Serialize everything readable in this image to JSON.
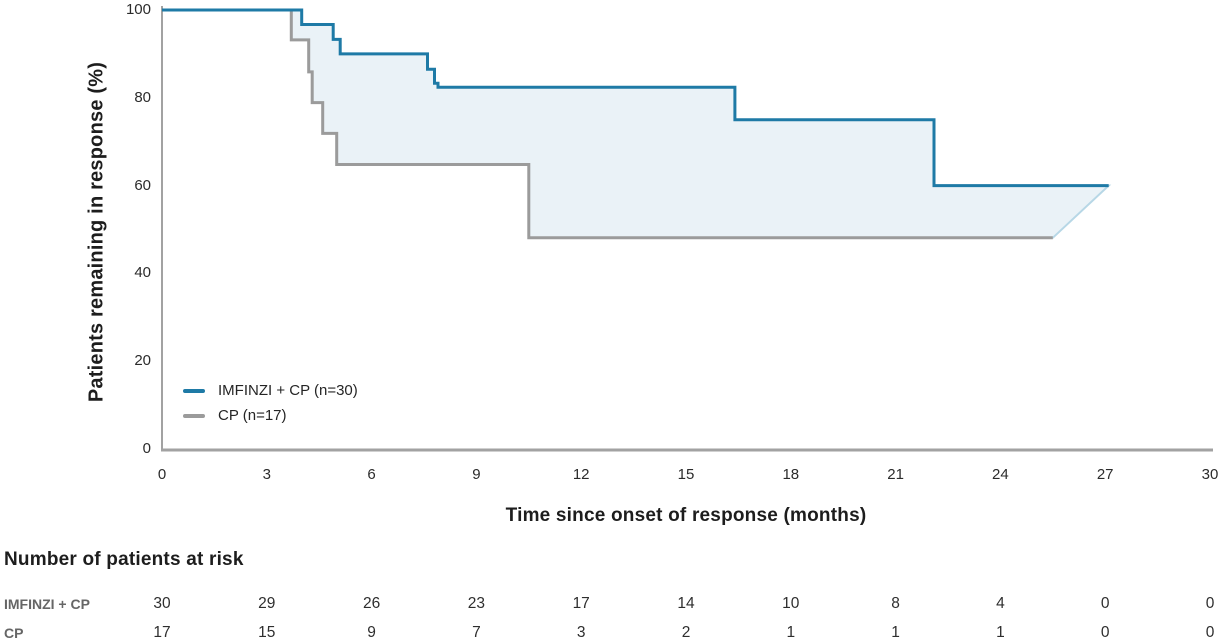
{
  "chart_data": {
    "type": "line",
    "subtype": "kaplan-meier-step",
    "title": "",
    "xlabel": "Time since onset of response (months)",
    "ylabel": "Patients remaining in response (%)",
    "xlim": [
      0,
      30
    ],
    "ylim": [
      0,
      100
    ],
    "xticks": [
      0,
      3,
      6,
      9,
      12,
      15,
      18,
      21,
      24,
      27,
      30
    ],
    "yticks": [
      0,
      20,
      40,
      60,
      80,
      100
    ],
    "grid": "off",
    "axis_color": "#a2a2a2",
    "band": {
      "fill": "#eaf2f7",
      "edge": "#b7d7e6"
    },
    "legend_position": "inside-lower-left",
    "legend": [
      {
        "label": "IMFINZI + CP (n=30)",
        "color": "#1e7aa6"
      },
      {
        "label": "CP (n=17)",
        "color": "#9b9b9b"
      }
    ],
    "series": [
      {
        "id": "imfinzi-cp",
        "name": "IMFINZI + CP (n=30)",
        "color": "#1e7aa6",
        "points": [
          [
            0,
            100
          ],
          [
            4.0,
            100
          ],
          [
            4.0,
            96.7
          ],
          [
            4.9,
            96.7
          ],
          [
            4.9,
            93.3
          ],
          [
            5.1,
            93.3
          ],
          [
            5.1,
            90
          ],
          [
            7.6,
            90
          ],
          [
            7.6,
            86.5
          ],
          [
            7.8,
            86.5
          ],
          [
            7.8,
            83.3
          ],
          [
            7.9,
            83.3
          ],
          [
            7.9,
            82.4
          ],
          [
            16.4,
            82.4
          ],
          [
            16.4,
            75.0
          ],
          [
            22.1,
            75.0
          ],
          [
            22.1,
            60.0
          ],
          [
            27.1,
            60.0
          ]
        ]
      },
      {
        "id": "cp",
        "name": "CP (n=17)",
        "color": "#9b9b9b",
        "points": [
          [
            0,
            100
          ],
          [
            3.7,
            100
          ],
          [
            3.7,
            93.2
          ],
          [
            4.2,
            93.2
          ],
          [
            4.2,
            85.9
          ],
          [
            4.3,
            85.9
          ],
          [
            4.3,
            78.9
          ],
          [
            4.6,
            78.9
          ],
          [
            4.6,
            71.9
          ],
          [
            5.0,
            71.9
          ],
          [
            5.0,
            64.8
          ],
          [
            10.5,
            64.8
          ],
          [
            10.5,
            48.1
          ],
          [
            25.5,
            48.1
          ]
        ]
      }
    ]
  },
  "risk_table": {
    "title": "Number of patients at risk",
    "timepoints": [
      0,
      3,
      6,
      9,
      12,
      15,
      18,
      21,
      24,
      27,
      30
    ],
    "rows": [
      {
        "id": "imfinzi-cp",
        "label": "IMFINZI + CP",
        "values": [
          30,
          29,
          26,
          23,
          17,
          14,
          10,
          8,
          4,
          0,
          0
        ]
      },
      {
        "id": "cp",
        "label": "CP",
        "values": [
          17,
          15,
          9,
          7,
          3,
          2,
          1,
          1,
          1,
          0,
          0
        ]
      }
    ]
  }
}
